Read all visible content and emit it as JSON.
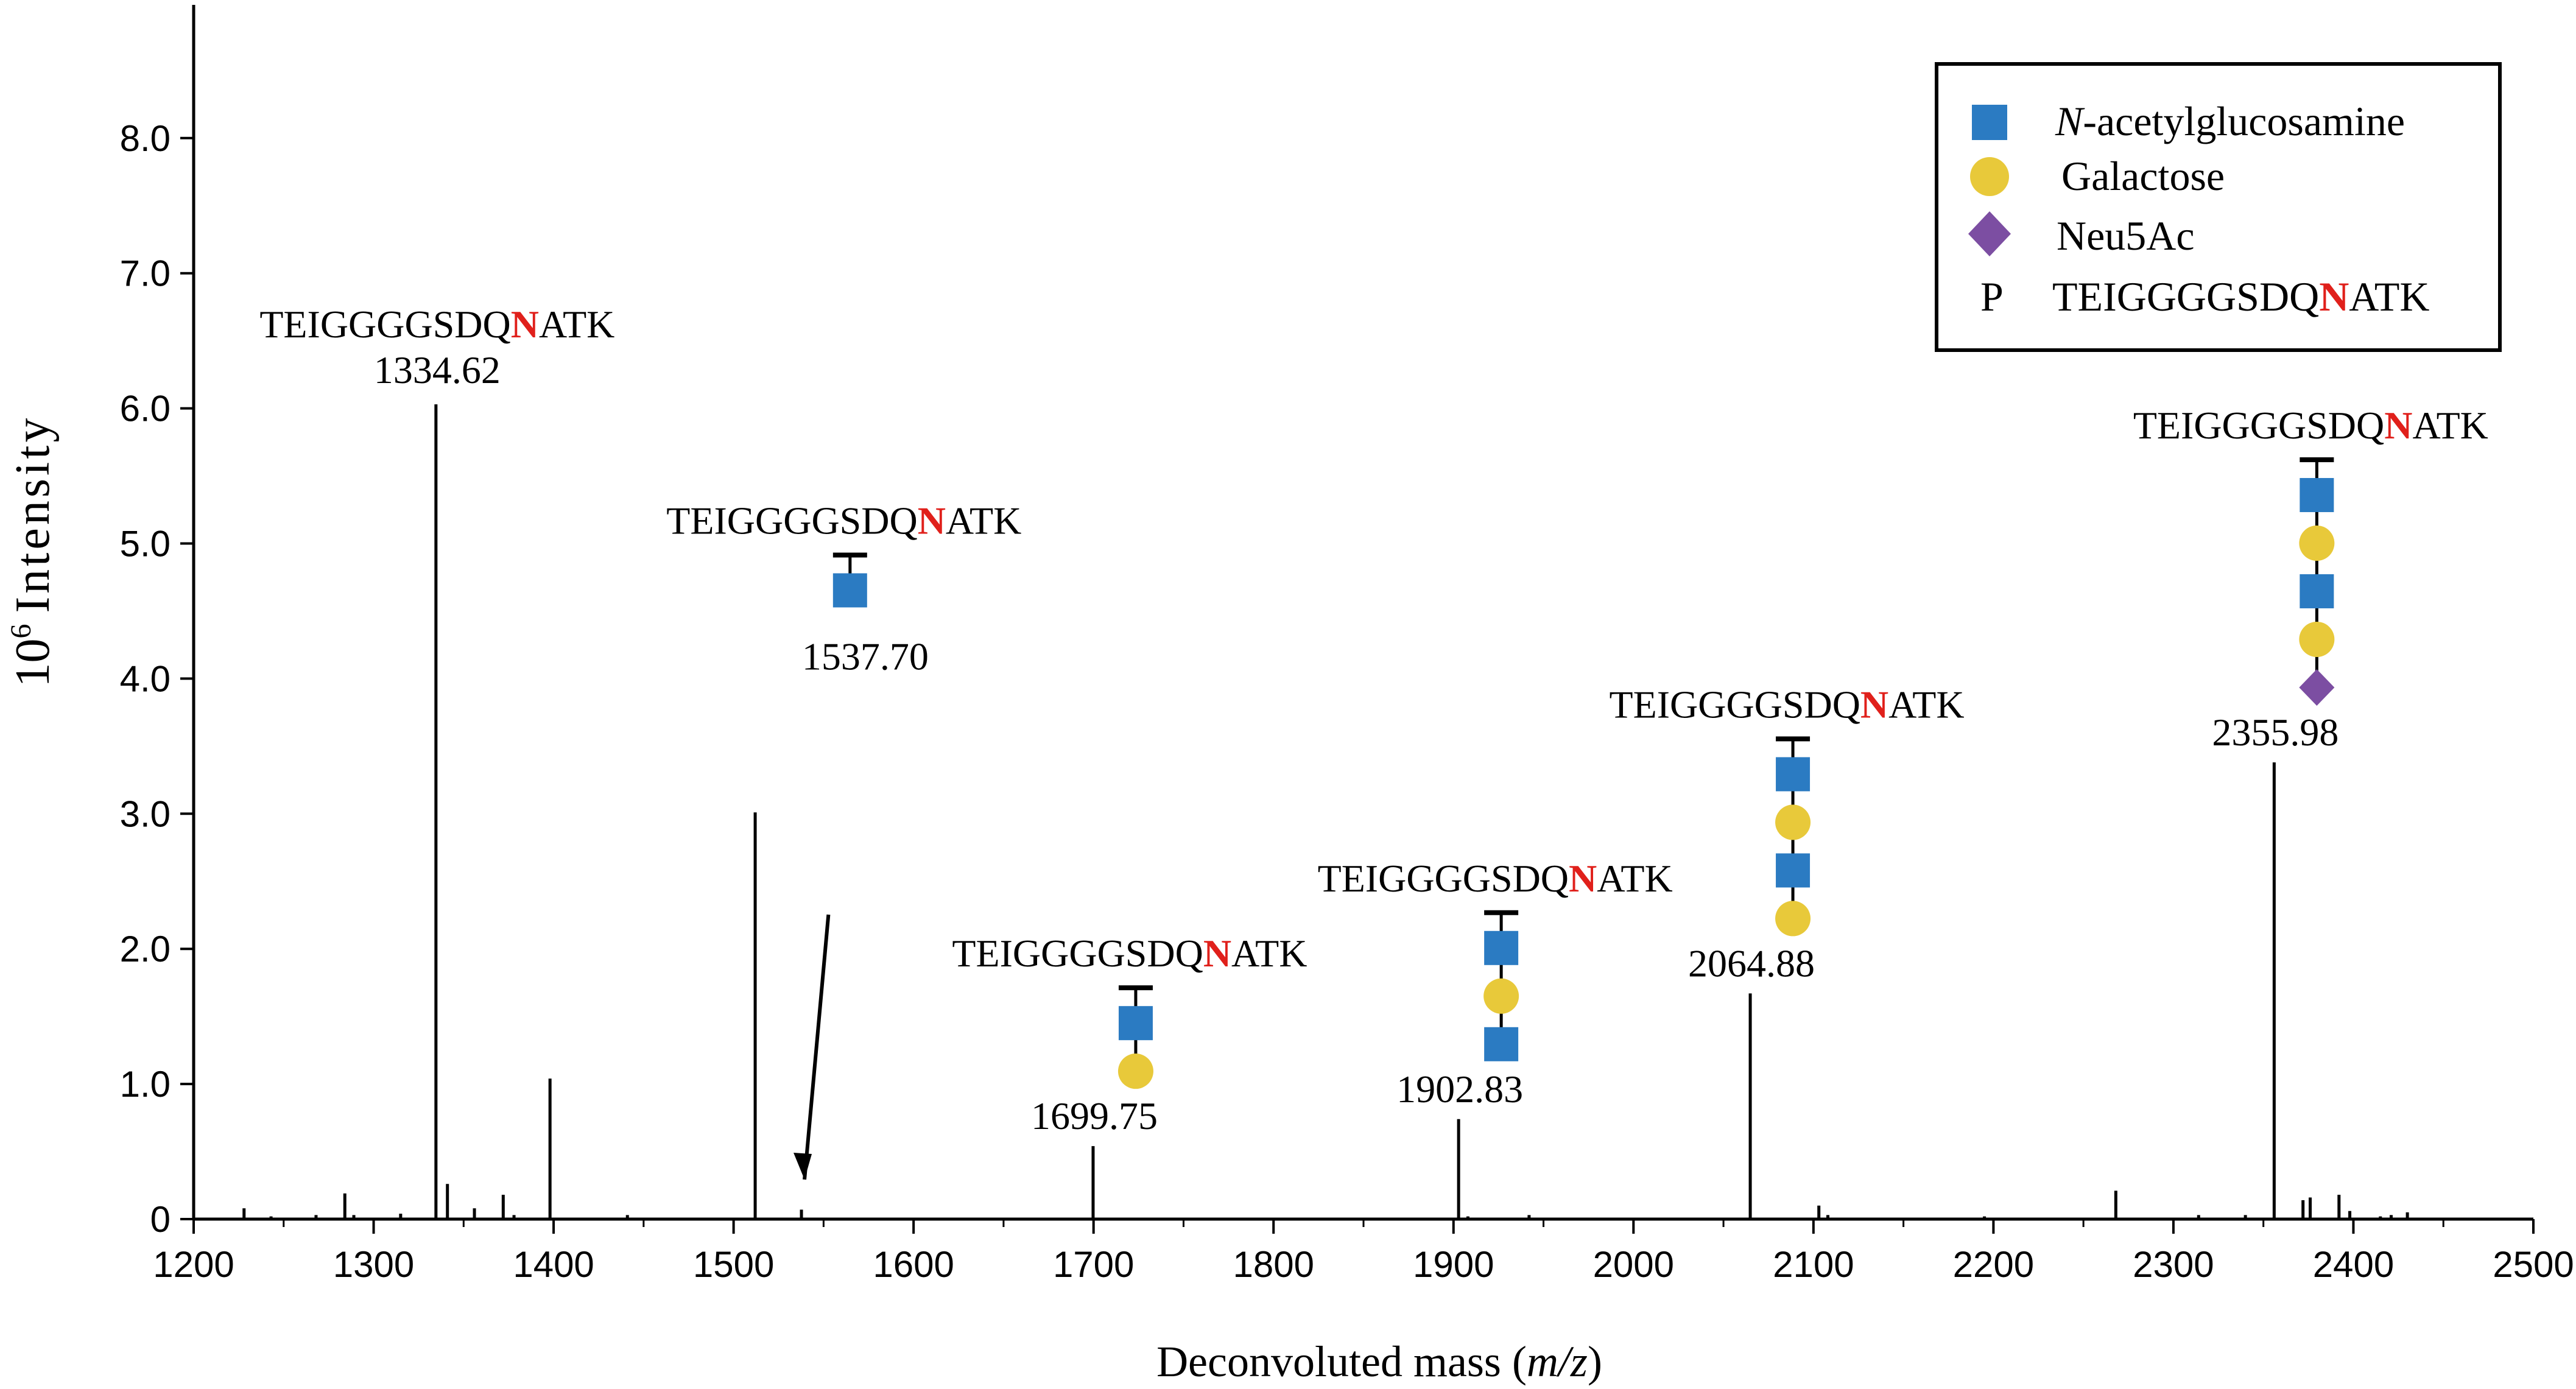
{
  "chart_data": {
    "type": "bar",
    "subtype": "mass-spectrum stick plot",
    "xlabel_prefix": "Deconvoluted mass (",
    "xlabel_italic": "m/z",
    "xlabel_suffix": ")",
    "ylabel": "Intensity",
    "ylabel_power_base": "10",
    "ylabel_power_exp": "6",
    "xlim": [
      1200,
      2500
    ],
    "ylim": [
      0,
      8.8
    ],
    "x_ticks": [
      1200,
      1300,
      1400,
      1500,
      1600,
      1700,
      1800,
      1900,
      2000,
      2100,
      2200,
      2300,
      2400,
      2500
    ],
    "x_tick_labels": [
      "1200",
      "1300",
      "1400",
      "1500",
      "1600",
      "1700",
      "1800",
      "1900",
      "2000",
      "2100",
      "2200",
      "2300",
      "2400",
      "2500"
    ],
    "y_ticks": [
      0,
      1,
      2,
      3,
      4,
      5,
      6,
      7,
      8
    ],
    "y_tick_labels": [
      "0",
      "1.0",
      "2.0",
      "3.0",
      "4.0",
      "5.0",
      "6.0",
      "7.0",
      "8.0"
    ],
    "peaks": [
      {
        "x": 1228,
        "y": 0.08
      },
      {
        "x": 1243,
        "y": 0.02
      },
      {
        "x": 1268,
        "y": 0.03
      },
      {
        "x": 1284,
        "y": 0.19
      },
      {
        "x": 1289,
        "y": 0.03
      },
      {
        "x": 1315,
        "y": 0.04
      },
      {
        "x": 1334.62,
        "y": 6.03
      },
      {
        "x": 1341,
        "y": 0.26
      },
      {
        "x": 1356,
        "y": 0.08
      },
      {
        "x": 1372,
        "y": 0.18
      },
      {
        "x": 1378,
        "y": 0.03
      },
      {
        "x": 1398,
        "y": 1.04
      },
      {
        "x": 1441,
        "y": 0.03
      },
      {
        "x": 1512,
        "y": 3.01
      },
      {
        "x": 1537.7,
        "y": 0.07
      },
      {
        "x": 1699.75,
        "y": 0.54
      },
      {
        "x": 1902.83,
        "y": 0.74
      },
      {
        "x": 1908,
        "y": 0.02
      },
      {
        "x": 1942,
        "y": 0.03
      },
      {
        "x": 2064.88,
        "y": 1.67
      },
      {
        "x": 2103,
        "y": 0.1
      },
      {
        "x": 2108,
        "y": 0.03
      },
      {
        "x": 2195,
        "y": 0.02
      },
      {
        "x": 2268,
        "y": 0.21
      },
      {
        "x": 2314,
        "y": 0.03
      },
      {
        "x": 2340,
        "y": 0.03
      },
      {
        "x": 2355.98,
        "y": 3.38
      },
      {
        "x": 2372,
        "y": 0.14
      },
      {
        "x": 2376,
        "y": 0.16
      },
      {
        "x": 2392,
        "y": 0.18
      },
      {
        "x": 2398,
        "y": 0.06
      },
      {
        "x": 2415,
        "y": 0.02
      },
      {
        "x": 2421,
        "y": 0.03
      },
      {
        "x": 2430,
        "y": 0.05
      }
    ],
    "annotations": [
      {
        "mass_label": "1334.62",
        "peak_x": 1334.62,
        "seq_pre": "TEIGGGGSDQ",
        "seq_n": "N",
        "seq_post": "ATK",
        "glycans": []
      },
      {
        "mass_label": "1537.70",
        "peak_x": 1537.7,
        "seq_pre": "TEIGGGGSDQ",
        "seq_n": "N",
        "seq_post": "ATK",
        "glycans": [
          "GlcNAc"
        ],
        "arrow": true
      },
      {
        "mass_label": "1699.75",
        "peak_x": 1699.75,
        "seq_pre": "TEIGGGGSDQ",
        "seq_n": "N",
        "seq_post": "ATK",
        "glycans": [
          "GlcNAc",
          "Gal"
        ]
      },
      {
        "mass_label": "1902.83",
        "peak_x": 1902.83,
        "seq_pre": "TEIGGGGSDQ",
        "seq_n": "N",
        "seq_post": "ATK",
        "glycans": [
          "GlcNAc",
          "Gal",
          "GlcNAc"
        ]
      },
      {
        "mass_label": "2064.88",
        "peak_x": 2064.88,
        "seq_pre": "TEIGGGGSDQ",
        "seq_n": "N",
        "seq_post": "ATK",
        "glycans": [
          "GlcNAc",
          "Gal",
          "GlcNAc",
          "Gal"
        ]
      },
      {
        "mass_label": "2355.98",
        "peak_x": 2355.98,
        "seq_pre": "TEIGGGGSDQ",
        "seq_n": "N",
        "seq_post": "ATK",
        "glycans": [
          "GlcNAc",
          "Gal",
          "GlcNAc",
          "Gal",
          "Neu5Ac"
        ]
      }
    ],
    "legend": {
      "placement": "top-right",
      "entries": [
        {
          "symbol": "GlcNAc",
          "label_italic": "N",
          "label": "-acetylglucosamine"
        },
        {
          "symbol": "Gal",
          "label": "Galactose"
        },
        {
          "symbol": "Neu5Ac",
          "label": "Neu5Ac"
        },
        {
          "symbol": "P",
          "label": "TEIGGGGSDQ",
          "label_red": "N",
          "label_post": "ATK"
        }
      ]
    },
    "colors": {
      "GlcNAc": "#2b7bc2",
      "Gal": "#e8c93a",
      "Neu5Ac": "#7c4ea2",
      "highlight": "#e0201b",
      "ink": "#000000"
    }
  }
}
